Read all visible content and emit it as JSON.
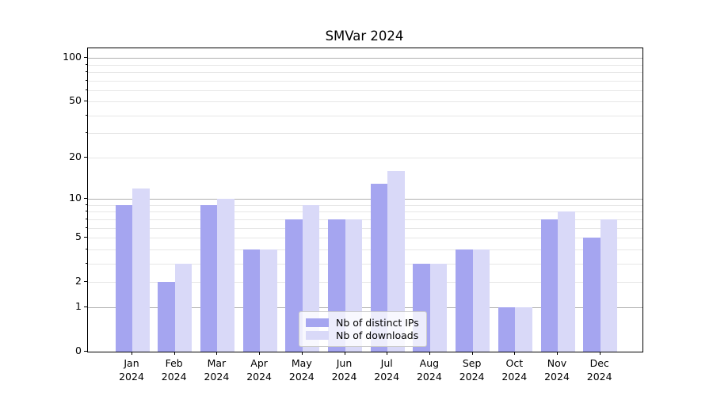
{
  "chart_data": {
    "type": "bar",
    "title": "SMVar 2024",
    "categories": [
      [
        "Jan",
        "2024"
      ],
      [
        "Feb",
        "2024"
      ],
      [
        "Mar",
        "2024"
      ],
      [
        "Apr",
        "2024"
      ],
      [
        "May",
        "2024"
      ],
      [
        "Jun",
        "2024"
      ],
      [
        "Jul",
        "2024"
      ],
      [
        "Aug",
        "2024"
      ],
      [
        "Sep",
        "2024"
      ],
      [
        "Oct",
        "2024"
      ],
      [
        "Nov",
        "2024"
      ],
      [
        "Dec",
        "2024"
      ]
    ],
    "series": [
      {
        "name": "Nb of distinct IPs",
        "color": "#a5a5f0",
        "values": [
          9,
          2,
          9,
          4,
          7,
          7,
          13,
          3,
          4,
          1,
          7,
          5
        ]
      },
      {
        "name": "Nb of downloads",
        "color": "#d9d9f8",
        "values": [
          12,
          3,
          10,
          4,
          9,
          7,
          16,
          3,
          4,
          1,
          8,
          7
        ]
      }
    ],
    "xlabel": "",
    "ylabel": "",
    "y_axis": {
      "scale": "log1p",
      "tick_labels": [
        "100",
        "50",
        "20",
        "10",
        "5",
        "2",
        "1",
        "0"
      ],
      "major_gridlines": [
        1,
        10,
        100
      ],
      "minor_gridlines": [
        2,
        3,
        4,
        5,
        6,
        7,
        8,
        9,
        20,
        30,
        40,
        50,
        60,
        70,
        80,
        90
      ],
      "ylim_top_value": 116,
      "grid": "on"
    },
    "legend": {
      "position": "lower center",
      "entries": [
        "Nb of distinct IPs",
        "Nb of downloads"
      ]
    },
    "colors": {
      "spine": "#000000",
      "grid_major": "#b0b0b0",
      "grid_minor": "#e7e7e7",
      "background": "#ffffff"
    }
  }
}
